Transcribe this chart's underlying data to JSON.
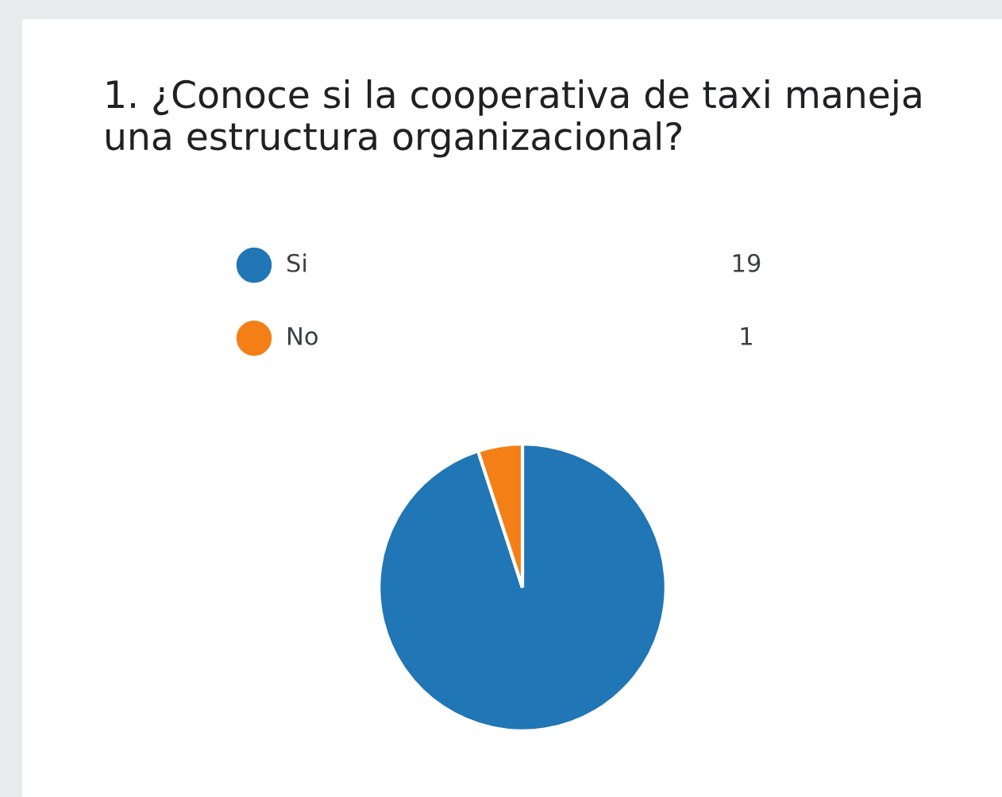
{
  "chart_data": {
    "type": "pie",
    "title": "1. ¿Conoce si la cooperativa de taxi maneja una estructura organizacional?",
    "categories": [
      "Si",
      "No"
    ],
    "values": [
      19,
      1
    ],
    "colors": [
      "#2176b5",
      "#f57f17"
    ],
    "data_labels": true,
    "legend": "top left"
  }
}
